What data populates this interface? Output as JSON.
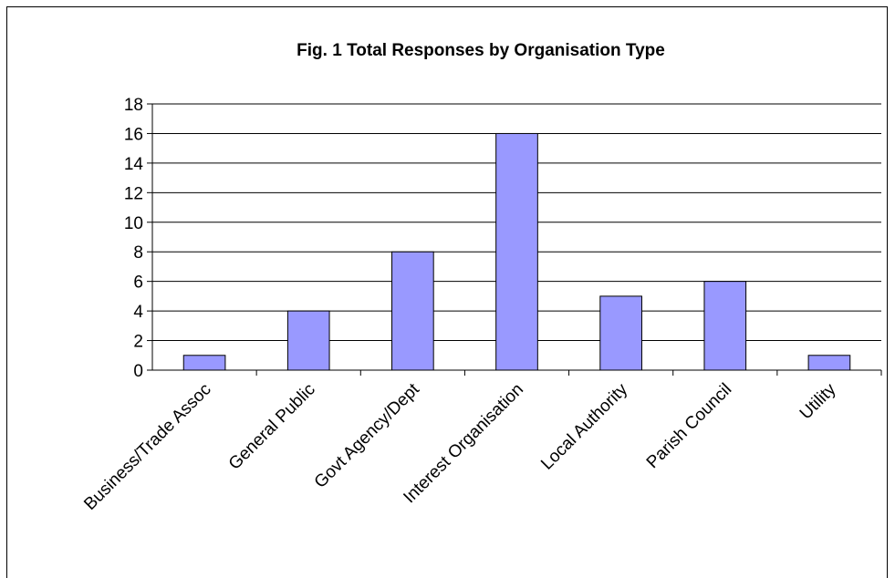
{
  "chart_data": {
    "type": "bar",
    "title": "Fig. 1  Total Responses by Organisation Type",
    "categories": [
      "Business/Trade Assoc",
      "General Public",
      "Govt Agency/Dept",
      "Interest Organisation",
      "Local Authority",
      "Parish Council",
      "Utility"
    ],
    "values": [
      1,
      4,
      8,
      16,
      5,
      6,
      1
    ],
    "xlabel": "",
    "ylabel": "",
    "ylim": [
      0,
      18
    ],
    "yticks": [
      0,
      2,
      4,
      6,
      8,
      10,
      12,
      14,
      16,
      18
    ],
    "grid": true,
    "legend": "none",
    "colors": {
      "bar": "#9999ff",
      "bar_stroke": "#000000",
      "grid": "#000000"
    }
  }
}
